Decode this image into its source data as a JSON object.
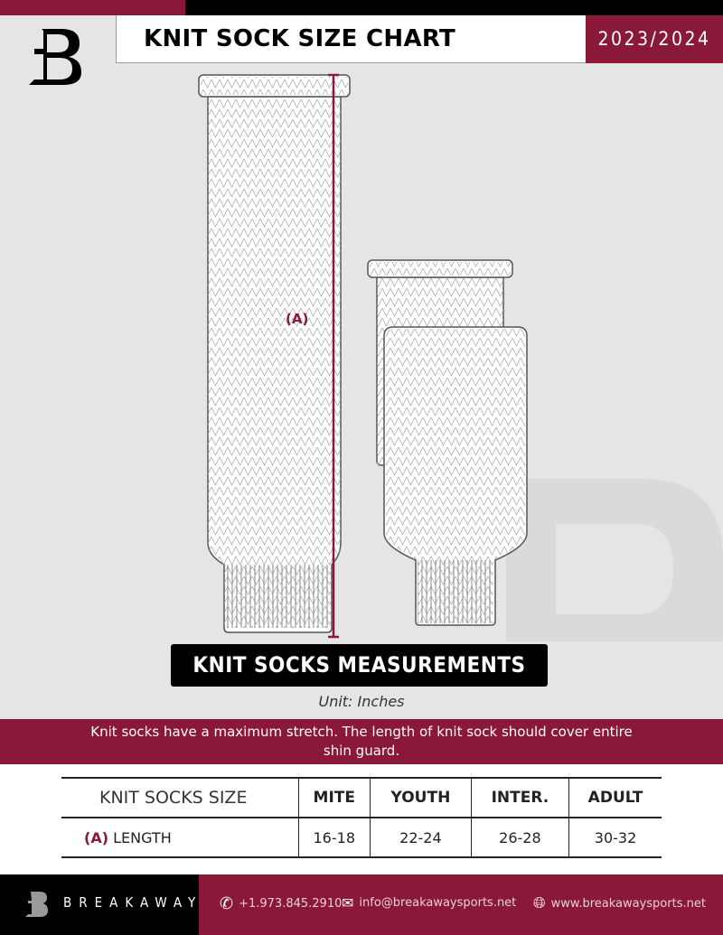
{
  "header": {
    "title": "KNIT SOCK SIZE CHART",
    "season": "2023/2024",
    "logo_letter": "B"
  },
  "diagram": {
    "measure_label": "(A)",
    "accent": "#8a1838"
  },
  "banner": "KNIT SOCKS MEASUREMENTS",
  "unit": "Unit: Inches",
  "note": "Knit socks have a maximum stretch. The length of knit sock should cover entire shin guard.",
  "table": {
    "header": [
      "KNIT SOCKS SIZE",
      "MITE",
      "YOUTH",
      "INTER.",
      "ADULT"
    ],
    "row": {
      "marker": "(A)",
      "label": "LENGTH",
      "values": [
        "16-18",
        "22-24",
        "26-28",
        "30-32"
      ]
    }
  },
  "footer": {
    "brand": "BREAKAWAY",
    "phone": "+1.973.845.2910",
    "email": "info@breakawaysports.net",
    "website": "www.breakawaysports.net"
  }
}
